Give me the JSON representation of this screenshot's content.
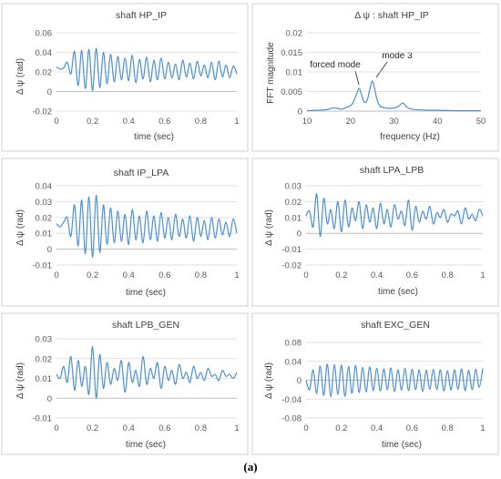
{
  "caption": "(a)",
  "chart_data": [
    {
      "type": "line",
      "title": "shaft HP_IP",
      "xlabel": "time (sec)",
      "ylabel": "Δ ψ (rad)",
      "xlim": [
        0,
        1
      ],
      "ylim": [
        -0.02,
        0.06
      ],
      "xticks": [
        0,
        0.2,
        0.4,
        0.6,
        0.8,
        1
      ],
      "xtick_labels": [
        "0",
        "0.2",
        "0.4",
        "0.6",
        "0.8",
        "1"
      ],
      "yticks": [
        -0.02,
        0,
        0.02,
        0.04,
        0.06
      ],
      "ytick_labels": [
        "-0.02",
        "0",
        "0.02",
        "0.04",
        "0.06"
      ],
      "series": [
        {
          "x": [
            0,
            0.02,
            0.04,
            0.06,
            0.08,
            0.1,
            0.12,
            0.14,
            0.16,
            0.18,
            0.2,
            0.22,
            0.24,
            0.26,
            0.28,
            0.3,
            0.32,
            0.34,
            0.36,
            0.38,
            0.4,
            0.42,
            0.44,
            0.46,
            0.48,
            0.5,
            0.52,
            0.54,
            0.56,
            0.58,
            0.6,
            0.62,
            0.64,
            0.66,
            0.68,
            0.7,
            0.72,
            0.74,
            0.76,
            0.78,
            0.8,
            0.82,
            0.84,
            0.86,
            0.88,
            0.9,
            0.92,
            0.94,
            0.96,
            0.98,
            1
          ],
          "y": [
            0.025,
            0.023,
            0.024,
            0.03,
            0.018,
            0.041,
            0.006,
            0.042,
            0.003,
            0.043,
            0.001,
            0.044,
            0.004,
            0.04,
            0.008,
            0.038,
            0.01,
            0.036,
            0.012,
            0.034,
            0.011,
            0.037,
            0.009,
            0.033,
            0.013,
            0.035,
            0.01,
            0.032,
            0.012,
            0.034,
            0.013,
            0.03,
            0.014,
            0.028,
            0.012,
            0.032,
            0.015,
            0.029,
            0.013,
            0.031,
            0.016,
            0.027,
            0.014,
            0.03,
            0.012,
            0.031,
            0.015,
            0.027,
            0.014,
            0.026,
            0.018
          ]
        }
      ]
    },
    {
      "type": "line",
      "title": "Δ ψ : shaft HP_IP",
      "xlabel": "frequency (Hz)",
      "ylabel": "FFT magnitude",
      "xlim": [
        10,
        50
      ],
      "ylim": [
        0,
        0.02
      ],
      "xticks": [
        10,
        20,
        30,
        40,
        50
      ],
      "xtick_labels": [
        "10",
        "20",
        "30",
        "40",
        "50"
      ],
      "yticks": [
        0,
        0.005,
        0.01,
        0.015,
        0.02
      ],
      "ytick_labels": [
        "0",
        "0.005",
        "0.01",
        "0.015",
        "0.02"
      ],
      "annotations": [
        {
          "text": "forced mode",
          "x": 22,
          "y": 0.0058
        },
        {
          "text": "mode 3",
          "x": 25.3,
          "y": 0.0077
        }
      ],
      "series": [
        {
          "x": [
            10,
            12,
            14,
            15,
            16,
            17,
            18,
            19,
            20,
            20.5,
            21,
            21.5,
            22,
            22.5,
            23,
            23.5,
            24,
            24.5,
            25,
            25.5,
            26,
            26.5,
            27,
            28,
            29,
            30,
            31,
            31.5,
            32,
            32.5,
            33,
            34,
            36,
            40,
            45,
            50
          ],
          "y": [
            0.0001,
            0.0002,
            0.0003,
            0.0005,
            0.0008,
            0.0007,
            0.0005,
            0.0009,
            0.0014,
            0.002,
            0.0032,
            0.0046,
            0.0058,
            0.0044,
            0.0026,
            0.0022,
            0.0034,
            0.0058,
            0.0077,
            0.006,
            0.0034,
            0.0018,
            0.0011,
            0.0008,
            0.0007,
            0.0008,
            0.0012,
            0.0017,
            0.0021,
            0.0016,
            0.001,
            0.0005,
            0.0003,
            0.0002,
            0.0001,
            0.0001
          ]
        }
      ]
    },
    {
      "type": "line",
      "title": "shaft IP_LPA",
      "xlabel": "time (sec)",
      "ylabel": "Δ ψ (rad)",
      "xlim": [
        0,
        1
      ],
      "ylim": [
        -0.01,
        0.04
      ],
      "xticks": [
        0,
        0.2,
        0.4,
        0.6,
        0.8,
        1
      ],
      "xtick_labels": [
        "0",
        "0.2",
        "0.4",
        "0.6",
        "0.8",
        "1"
      ],
      "yticks": [
        -0.01,
        0,
        0.01,
        0.02,
        0.03,
        0.04
      ],
      "ytick_labels": [
        "-0.01",
        "0",
        "0.01",
        "0.02",
        "0.03",
        "0.04"
      ],
      "series": [
        {
          "x": [
            0,
            0.02,
            0.04,
            0.06,
            0.08,
            0.1,
            0.12,
            0.14,
            0.16,
            0.18,
            0.2,
            0.22,
            0.24,
            0.26,
            0.28,
            0.3,
            0.32,
            0.34,
            0.36,
            0.38,
            0.4,
            0.42,
            0.44,
            0.46,
            0.48,
            0.5,
            0.52,
            0.54,
            0.56,
            0.58,
            0.6,
            0.62,
            0.64,
            0.66,
            0.68,
            0.7,
            0.72,
            0.74,
            0.76,
            0.78,
            0.8,
            0.82,
            0.84,
            0.86,
            0.88,
            0.9,
            0.92,
            0.94,
            0.96,
            0.98,
            1
          ],
          "y": [
            0.016,
            0.014,
            0.017,
            0.02,
            0.008,
            0.028,
            0.002,
            0.031,
            -0.003,
            0.033,
            -0.005,
            0.034,
            -0.002,
            0.028,
            0.003,
            0.026,
            0.004,
            0.024,
            0.005,
            0.022,
            0.003,
            0.025,
            0.006,
            0.021,
            0.004,
            0.024,
            0.006,
            0.021,
            0.005,
            0.023,
            0.007,
            0.02,
            0.006,
            0.022,
            0.008,
            0.019,
            0.007,
            0.021,
            0.005,
            0.02,
            0.008,
            0.018,
            0.006,
            0.02,
            0.007,
            0.019,
            0.009,
            0.017,
            0.008,
            0.019,
            0.01
          ]
        }
      ]
    },
    {
      "type": "line",
      "title": "shaft LPA_LPB",
      "xlabel": "time (sec)",
      "ylabel": "Δ ψ (rad)",
      "xlim": [
        0,
        1
      ],
      "ylim": [
        -0.02,
        0.03
      ],
      "xticks": [
        0,
        0.2,
        0.4,
        0.6,
        0.8,
        1
      ],
      "xtick_labels": [
        "0",
        "0.2",
        "0.4",
        "0.6",
        "0.8",
        "1"
      ],
      "yticks": [
        -0.02,
        -0.01,
        0,
        0.01,
        0.02,
        0.03
      ],
      "ytick_labels": [
        "-0.02",
        "-0.01",
        "0",
        "0.01",
        "0.02",
        "0.03"
      ],
      "series": [
        {
          "x": [
            0,
            0.02,
            0.04,
            0.06,
            0.08,
            0.1,
            0.12,
            0.14,
            0.16,
            0.18,
            0.2,
            0.22,
            0.24,
            0.26,
            0.28,
            0.3,
            0.32,
            0.34,
            0.36,
            0.38,
            0.4,
            0.42,
            0.44,
            0.46,
            0.48,
            0.5,
            0.52,
            0.54,
            0.56,
            0.58,
            0.6,
            0.62,
            0.64,
            0.66,
            0.68,
            0.7,
            0.72,
            0.74,
            0.76,
            0.78,
            0.8,
            0.82,
            0.84,
            0.86,
            0.88,
            0.9,
            0.92,
            0.94,
            0.96,
            0.98,
            1
          ],
          "y": [
            0.011,
            0.014,
            0.004,
            0.025,
            -0.002,
            0.022,
            0.006,
            0.015,
            0.003,
            0.02,
            0.001,
            0.021,
            0.004,
            0.016,
            0.008,
            0.02,
            0.003,
            0.018,
            0.007,
            0.016,
            0.003,
            0.019,
            0.006,
            0.015,
            0.004,
            0.018,
            0.009,
            0.014,
            0.005,
            0.021,
            0.002,
            0.017,
            0.007,
            0.014,
            0.009,
            0.017,
            0.006,
            0.013,
            0.01,
            0.015,
            0.007,
            0.012,
            0.011,
            0.014,
            0.006,
            0.016,
            0.009,
            0.012,
            0.008,
            0.015,
            0.011
          ]
        }
      ]
    },
    {
      "type": "line",
      "title": "shaft LPB_GEN",
      "xlabel": "time (sec)",
      "ylabel": "Δ ψ (rad)",
      "xlim": [
        0,
        1
      ],
      "ylim": [
        -0.01,
        0.03
      ],
      "xticks": [
        0,
        0.2,
        0.4,
        0.6,
        0.8,
        1
      ],
      "xtick_labels": [
        "0",
        "0.2",
        "0.4",
        "0.6",
        "0.8",
        "1"
      ],
      "yticks": [
        -0.01,
        0,
        0.01,
        0.02,
        0.03
      ],
      "ytick_labels": [
        "-0.01",
        "0",
        "0.01",
        "0.02",
        "0.03"
      ],
      "series": [
        {
          "x": [
            0,
            0.02,
            0.04,
            0.06,
            0.08,
            0.1,
            0.12,
            0.14,
            0.16,
            0.18,
            0.2,
            0.22,
            0.24,
            0.26,
            0.28,
            0.3,
            0.32,
            0.34,
            0.36,
            0.38,
            0.4,
            0.42,
            0.44,
            0.46,
            0.48,
            0.5,
            0.52,
            0.54,
            0.56,
            0.58,
            0.6,
            0.62,
            0.64,
            0.66,
            0.68,
            0.7,
            0.72,
            0.74,
            0.76,
            0.78,
            0.8,
            0.82,
            0.84,
            0.86,
            0.88,
            0.9,
            0.92,
            0.94,
            0.96,
            0.98,
            1
          ],
          "y": [
            0.012,
            0.01,
            0.016,
            0.008,
            0.021,
            0.004,
            0.019,
            0.006,
            0.016,
            0.002,
            0.026,
            0.0,
            0.022,
            0.005,
            0.018,
            0.007,
            0.015,
            0.009,
            0.019,
            0.003,
            0.018,
            0.008,
            0.014,
            0.006,
            0.021,
            0.007,
            0.015,
            0.01,
            0.018,
            0.005,
            0.016,
            0.009,
            0.014,
            0.007,
            0.017,
            0.01,
            0.013,
            0.008,
            0.016,
            0.01,
            0.013,
            0.009,
            0.015,
            0.011,
            0.012,
            0.009,
            0.014,
            0.011,
            0.012,
            0.01,
            0.013
          ]
        }
      ]
    },
    {
      "type": "line",
      "title": "shaft EXC_GEN",
      "xlabel": "time (sec)",
      "ylabel": "Δ ψ (rad)",
      "xlim": [
        0,
        1
      ],
      "ylim": [
        -0.08,
        0.08
      ],
      "xticks": [
        0,
        0.2,
        0.4,
        0.6,
        0.8,
        1
      ],
      "xtick_labels": [
        "0",
        "0.2",
        "0.4",
        "0.6",
        "0.8",
        "1"
      ],
      "yticks": [
        -0.08,
        -0.04,
        0,
        0.04,
        0.08
      ],
      "ytick_labels": [
        "-0.08",
        "-0.04",
        "0",
        "0.04",
        "0.08"
      ],
      "series": [
        {
          "x": [
            0,
            0.02,
            0.04,
            0.06,
            0.08,
            0.1,
            0.12,
            0.14,
            0.16,
            0.18,
            0.2,
            0.22,
            0.24,
            0.26,
            0.28,
            0.3,
            0.32,
            0.34,
            0.36,
            0.38,
            0.4,
            0.42,
            0.44,
            0.46,
            0.48,
            0.5,
            0.52,
            0.54,
            0.56,
            0.58,
            0.6,
            0.62,
            0.64,
            0.66,
            0.68,
            0.7,
            0.72,
            0.74,
            0.76,
            0.78,
            0.8,
            0.82,
            0.84,
            0.86,
            0.88,
            0.9,
            0.92,
            0.94,
            0.96,
            0.98,
            1
          ],
          "y": [
            0.0,
            -0.02,
            0.022,
            -0.028,
            0.03,
            -0.032,
            0.034,
            -0.035,
            0.033,
            -0.03,
            0.032,
            -0.034,
            0.029,
            -0.028,
            0.031,
            -0.026,
            0.027,
            -0.025,
            0.028,
            -0.022,
            0.025,
            -0.023,
            0.024,
            -0.02,
            0.026,
            -0.024,
            0.022,
            -0.021,
            0.025,
            -0.022,
            0.023,
            -0.02,
            0.022,
            -0.024,
            0.021,
            -0.019,
            0.023,
            -0.02,
            0.022,
            -0.023,
            0.02,
            -0.021,
            0.022,
            -0.019,
            0.024,
            -0.022,
            0.021,
            -0.02,
            0.023,
            -0.015,
            0.025
          ]
        }
      ]
    }
  ]
}
